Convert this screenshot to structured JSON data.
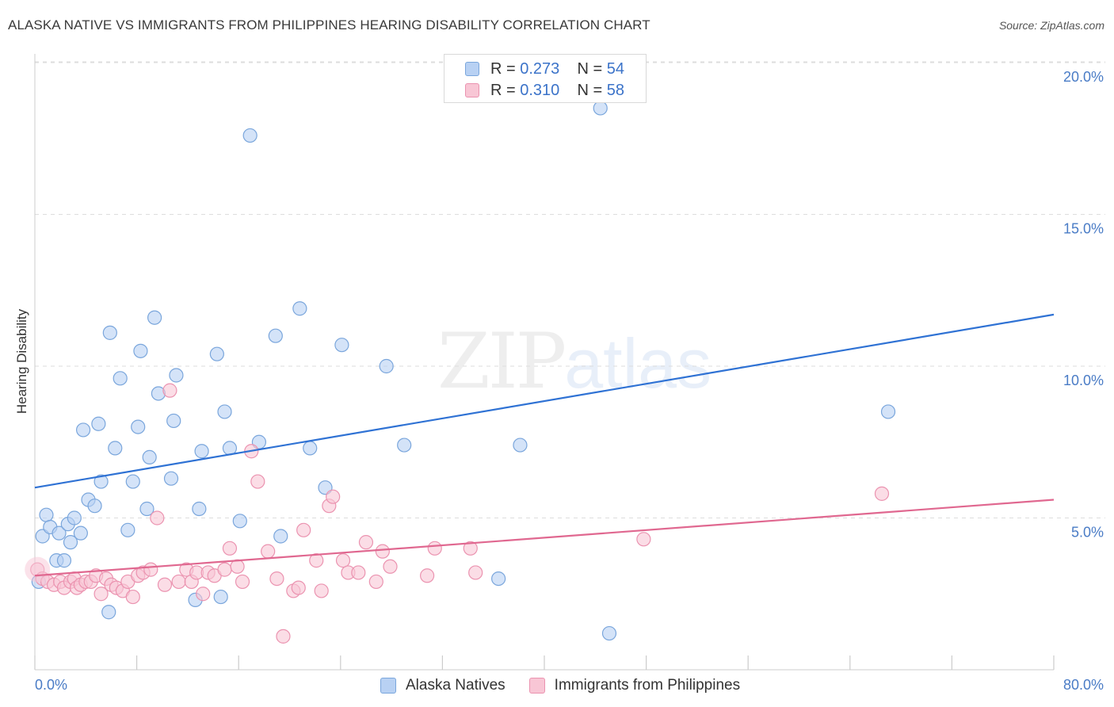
{
  "title": "ALASKA NATIVE VS IMMIGRANTS FROM PHILIPPINES HEARING DISABILITY CORRELATION CHART",
  "source": "Source: ZipAtlas.com",
  "watermark": {
    "part1": "ZIP",
    "part2": "atlas"
  },
  "legend_top": {
    "rows": [
      {
        "r_label": "R =",
        "r_value": "0.273",
        "n_label": "N =",
        "n_value": "54"
      },
      {
        "r_label": "R =",
        "r_value": "0.310",
        "n_label": "N =",
        "n_value": "58"
      }
    ]
  },
  "colors": {
    "blue_fill": "#b8d1f3",
    "blue_stroke": "#7aa6dc",
    "blue_line": "#2f72d4",
    "pink_fill": "#f8c6d5",
    "pink_stroke": "#eb93b0",
    "pink_line": "#e06890",
    "grid": "#dddddd",
    "tick_text": "#4a7cc6"
  },
  "chart_data": {
    "type": "scatter",
    "title": "ALASKA NATIVE VS IMMIGRANTS FROM PHILIPPINES HEARING DISABILITY CORRELATION CHART",
    "xlabel": "",
    "ylabel": "Hearing Disability",
    "xlim": [
      0,
      80
    ],
    "ylim": [
      0,
      20.5
    ],
    "x_tick_labels": [
      "0.0%",
      "80.0%"
    ],
    "y_ticks": [
      5,
      10,
      15,
      20
    ],
    "y_tick_labels": [
      "5.0%",
      "10.0%",
      "15.0%",
      "20.0%"
    ],
    "legend_position": "top-center",
    "series": [
      {
        "name": "Alaska Natives",
        "R": 0.273,
        "N": 54,
        "trend": {
          "x": [
            0,
            80
          ],
          "y": [
            6.0,
            11.7
          ]
        },
        "points": [
          [
            0.3,
            2.9
          ],
          [
            0.6,
            4.4
          ],
          [
            0.9,
            5.1
          ],
          [
            1.2,
            4.7
          ],
          [
            1.7,
            3.6
          ],
          [
            1.9,
            4.5
          ],
          [
            2.3,
            3.6
          ],
          [
            2.6,
            4.8
          ],
          [
            2.8,
            4.2
          ],
          [
            3.1,
            5.0
          ],
          [
            3.6,
            4.5
          ],
          [
            3.8,
            7.9
          ],
          [
            4.2,
            5.6
          ],
          [
            4.7,
            5.4
          ],
          [
            5.0,
            8.1
          ],
          [
            5.2,
            6.2
          ],
          [
            5.8,
            1.9
          ],
          [
            5.9,
            11.1
          ],
          [
            6.3,
            7.3
          ],
          [
            6.7,
            9.6
          ],
          [
            7.3,
            4.6
          ],
          [
            7.7,
            6.2
          ],
          [
            8.1,
            8.0
          ],
          [
            8.3,
            10.5
          ],
          [
            8.8,
            5.3
          ],
          [
            9.0,
            7.0
          ],
          [
            9.4,
            11.6
          ],
          [
            9.7,
            9.1
          ],
          [
            10.7,
            6.3
          ],
          [
            10.9,
            8.2
          ],
          [
            11.1,
            9.7
          ],
          [
            12.6,
            2.3
          ],
          [
            12.9,
            5.3
          ],
          [
            13.1,
            7.2
          ],
          [
            14.3,
            10.4
          ],
          [
            14.6,
            2.4
          ],
          [
            14.9,
            8.5
          ],
          [
            15.3,
            7.3
          ],
          [
            16.1,
            4.9
          ],
          [
            16.9,
            17.6
          ],
          [
            17.6,
            7.5
          ],
          [
            18.9,
            11.0
          ],
          [
            19.3,
            4.4
          ],
          [
            20.8,
            11.9
          ],
          [
            21.6,
            7.3
          ],
          [
            22.8,
            6.0
          ],
          [
            24.1,
            10.7
          ],
          [
            27.6,
            10.0
          ],
          [
            29.0,
            7.4
          ],
          [
            36.4,
            3.0
          ],
          [
            38.1,
            7.4
          ],
          [
            44.4,
            18.5
          ],
          [
            45.1,
            1.2
          ],
          [
            67.0,
            8.5
          ]
        ]
      },
      {
        "name": "Immigrants from Philippines",
        "R": 0.31,
        "N": 58,
        "trend": {
          "x": [
            0,
            80
          ],
          "y": [
            3.1,
            5.6
          ]
        },
        "points": [
          [
            0.2,
            3.3
          ],
          [
            0.6,
            3.0
          ],
          [
            1.0,
            2.9
          ],
          [
            1.5,
            2.8
          ],
          [
            2.0,
            2.9
          ],
          [
            2.3,
            2.7
          ],
          [
            2.8,
            2.9
          ],
          [
            3.1,
            3.0
          ],
          [
            3.3,
            2.7
          ],
          [
            3.6,
            2.8
          ],
          [
            4.0,
            2.9
          ],
          [
            4.4,
            2.9
          ],
          [
            4.8,
            3.1
          ],
          [
            5.2,
            2.5
          ],
          [
            5.6,
            3.0
          ],
          [
            6.0,
            2.8
          ],
          [
            6.4,
            2.7
          ],
          [
            6.9,
            2.6
          ],
          [
            7.3,
            2.9
          ],
          [
            7.7,
            2.4
          ],
          [
            8.1,
            3.1
          ],
          [
            8.5,
            3.2
          ],
          [
            9.1,
            3.3
          ],
          [
            9.6,
            5.0
          ],
          [
            10.2,
            2.8
          ],
          [
            10.6,
            9.2
          ],
          [
            11.3,
            2.9
          ],
          [
            11.9,
            3.3
          ],
          [
            12.3,
            2.9
          ],
          [
            12.7,
            3.2
          ],
          [
            13.2,
            2.5
          ],
          [
            13.6,
            3.2
          ],
          [
            14.1,
            3.1
          ],
          [
            14.9,
            3.3
          ],
          [
            15.3,
            4.0
          ],
          [
            15.9,
            3.4
          ],
          [
            16.3,
            2.9
          ],
          [
            17.0,
            7.2
          ],
          [
            17.5,
            6.2
          ],
          [
            18.3,
            3.9
          ],
          [
            19.0,
            3.0
          ],
          [
            19.5,
            1.1
          ],
          [
            20.3,
            2.6
          ],
          [
            20.7,
            2.7
          ],
          [
            21.1,
            4.6
          ],
          [
            22.1,
            3.6
          ],
          [
            22.5,
            2.6
          ],
          [
            23.1,
            5.4
          ],
          [
            23.4,
            5.7
          ],
          [
            24.2,
            3.6
          ],
          [
            24.6,
            3.2
          ],
          [
            25.4,
            3.2
          ],
          [
            26.0,
            4.2
          ],
          [
            26.8,
            2.9
          ],
          [
            27.3,
            3.9
          ],
          [
            27.9,
            3.4
          ],
          [
            30.8,
            3.1
          ],
          [
            31.4,
            4.0
          ]
        ],
        "extra_points": [
          [
            34.2,
            4.0
          ],
          [
            34.6,
            3.2
          ],
          [
            47.8,
            4.3
          ],
          [
            66.5,
            5.8
          ]
        ]
      }
    ]
  },
  "legend_bottom": {
    "items": [
      "Alaska Natives",
      "Immigrants from Philippines"
    ]
  }
}
